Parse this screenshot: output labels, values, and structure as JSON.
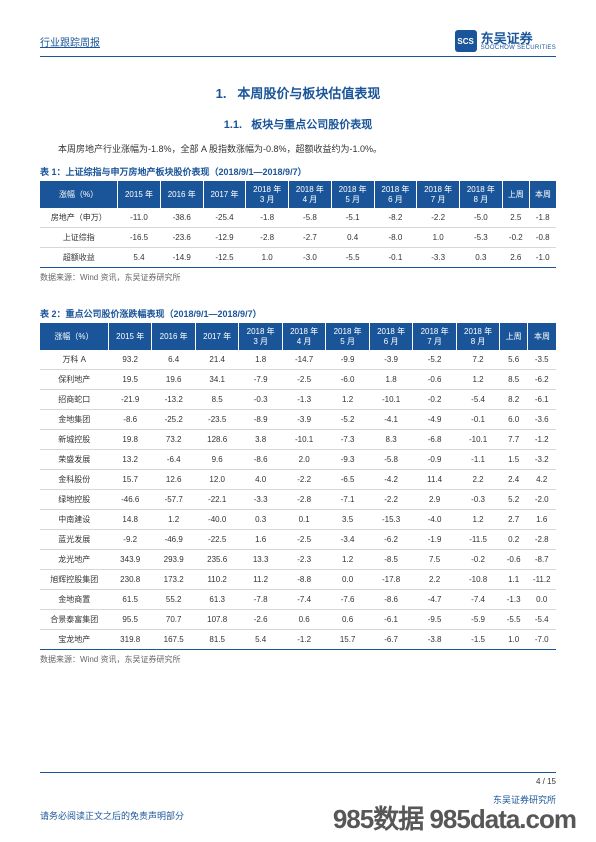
{
  "header": {
    "doc_type": "行业跟踪周报",
    "logo_badge": "SCS",
    "logo_cn": "东吴证券",
    "logo_en": "SOOCHOW SECURITIES"
  },
  "section": {
    "number": "1.",
    "title": "本周股价与板块估值表现",
    "sub_number": "1.1.",
    "sub_title": "板块与重点公司股价表现",
    "intro": "本周房地产行业涨幅为-1.8%，全部 A 股指数涨幅为-0.8%，超额收益约为-1.0%。"
  },
  "table1": {
    "caption": "表 1：上证综指与申万房地产板块股价表现（2018/9/1—2018/9/7）",
    "columns": [
      "涨幅（%）",
      "2015 年",
      "2016 年",
      "2017 年",
      "2018 年\n3 月",
      "2018 年\n4 月",
      "2018 年\n5 月",
      "2018 年\n6 月",
      "2018 年\n7 月",
      "2018 年\n8 月",
      "上周",
      "本周"
    ],
    "rows": [
      [
        "房地产（申万）",
        "-11.0",
        "-38.6",
        "-25.4",
        "-1.8",
        "-5.8",
        "-5.1",
        "-8.2",
        "-2.2",
        "-5.0",
        "2.5",
        "-1.8"
      ],
      [
        "上证综指",
        "-16.5",
        "-23.6",
        "-12.9",
        "-2.8",
        "-2.7",
        "0.4",
        "-8.0",
        "1.0",
        "-5.3",
        "-0.2",
        "-0.8"
      ],
      [
        "超额收益",
        "5.4",
        "-14.9",
        "-12.5",
        "1.0",
        "-3.0",
        "-5.5",
        "-0.1",
        "-3.3",
        "0.3",
        "2.6",
        "-1.0"
      ]
    ],
    "source": "数据来源：Wind 资讯，东吴证券研究所"
  },
  "table2": {
    "caption": "表 2：重点公司股价涨跌幅表现（2018/9/1—2018/9/7）",
    "columns": [
      "涨幅（%）",
      "2015 年",
      "2016 年",
      "2017 年",
      "2018 年\n3 月",
      "2018 年\n4 月",
      "2018 年\n5 月",
      "2018 年\n6 月",
      "2018 年\n7 月",
      "2018 年\n8 月",
      "上周",
      "本周"
    ],
    "rows": [
      [
        "万科 A",
        "93.2",
        "6.4",
        "21.4",
        "1.8",
        "-14.7",
        "-9.9",
        "-3.9",
        "-5.2",
        "7.2",
        "5.6",
        "-3.5"
      ],
      [
        "保利地产",
        "19.5",
        "19.6",
        "34.1",
        "-7.9",
        "-2.5",
        "-6.0",
        "1.8",
        "-0.6",
        "1.2",
        "8.5",
        "-6.2"
      ],
      [
        "招商蛇口",
        "-21.9",
        "-13.2",
        "8.5",
        "-0.3",
        "-1.3",
        "1.2",
        "-10.1",
        "-0.2",
        "-5.4",
        "8.2",
        "-6.1"
      ],
      [
        "金地集团",
        "-8.6",
        "-25.2",
        "-23.5",
        "-8.9",
        "-3.9",
        "-5.2",
        "-4.1",
        "-4.9",
        "-0.1",
        "6.0",
        "-3.6"
      ],
      [
        "新城控股",
        "19.8",
        "73.2",
        "128.6",
        "3.8",
        "-10.1",
        "-7.3",
        "8.3",
        "-6.8",
        "-10.1",
        "7.7",
        "-1.2"
      ],
      [
        "荣盛发展",
        "13.2",
        "-6.4",
        "9.6",
        "-8.6",
        "2.0",
        "-9.3",
        "-5.8",
        "-0.9",
        "-1.1",
        "1.5",
        "-3.2"
      ],
      [
        "金科股份",
        "15.7",
        "12.6",
        "12.0",
        "4.0",
        "-2.2",
        "-6.5",
        "-4.2",
        "11.4",
        "2.2",
        "2.4",
        "4.2"
      ],
      [
        "绿地控股",
        "-46.6",
        "-57.7",
        "-22.1",
        "-3.3",
        "-2.8",
        "-7.1",
        "-2.2",
        "2.9",
        "-0.3",
        "5.2",
        "-2.0"
      ],
      [
        "中南建设",
        "14.8",
        "1.2",
        "-40.0",
        "0.3",
        "0.1",
        "3.5",
        "-15.3",
        "-4.0",
        "1.2",
        "2.7",
        "1.6"
      ],
      [
        "蓝光发展",
        "-9.2",
        "-46.9",
        "-22.5",
        "1.6",
        "-2.5",
        "-3.4",
        "-6.2",
        "-1.9",
        "-11.5",
        "0.2",
        "-2.8"
      ],
      [
        "龙光地产",
        "343.9",
        "293.9",
        "235.6",
        "13.3",
        "-2.3",
        "1.2",
        "-8.5",
        "7.5",
        "-0.2",
        "-0.6",
        "-8.7"
      ],
      [
        "旭辉控股集团",
        "230.8",
        "173.2",
        "110.2",
        "11.2",
        "-8.8",
        "0.0",
        "-17.8",
        "2.2",
        "-10.8",
        "1.1",
        "-11.2"
      ],
      [
        "金地商置",
        "61.5",
        "55.2",
        "61.3",
        "-7.8",
        "-7.4",
        "-7.6",
        "-8.6",
        "-4.7",
        "-7.4",
        "-1.3",
        "0.0"
      ],
      [
        "合景泰富集团",
        "95.5",
        "70.7",
        "107.8",
        "-2.6",
        "0.6",
        "0.6",
        "-6.1",
        "-9.5",
        "-5.9",
        "-5.5",
        "-5.4"
      ],
      [
        "宝龙地产",
        "319.8",
        "167.5",
        "81.5",
        "5.4",
        "-1.2",
        "15.7",
        "-6.7",
        "-3.8",
        "-1.5",
        "1.0",
        "-7.0"
      ]
    ],
    "source": "数据来源：Wind 资讯，东吴证券研究所"
  },
  "footer": {
    "page": "4 / 15",
    "research": "东吴证券研究所",
    "disclaimer": "请务必阅读正文之后的免责声明部分",
    "watermark_a": "985数据",
    "watermark_b": "985data.com"
  },
  "colors": {
    "brand": "#1a5599",
    "text": "#333333",
    "grid": "#d8d8d8"
  }
}
